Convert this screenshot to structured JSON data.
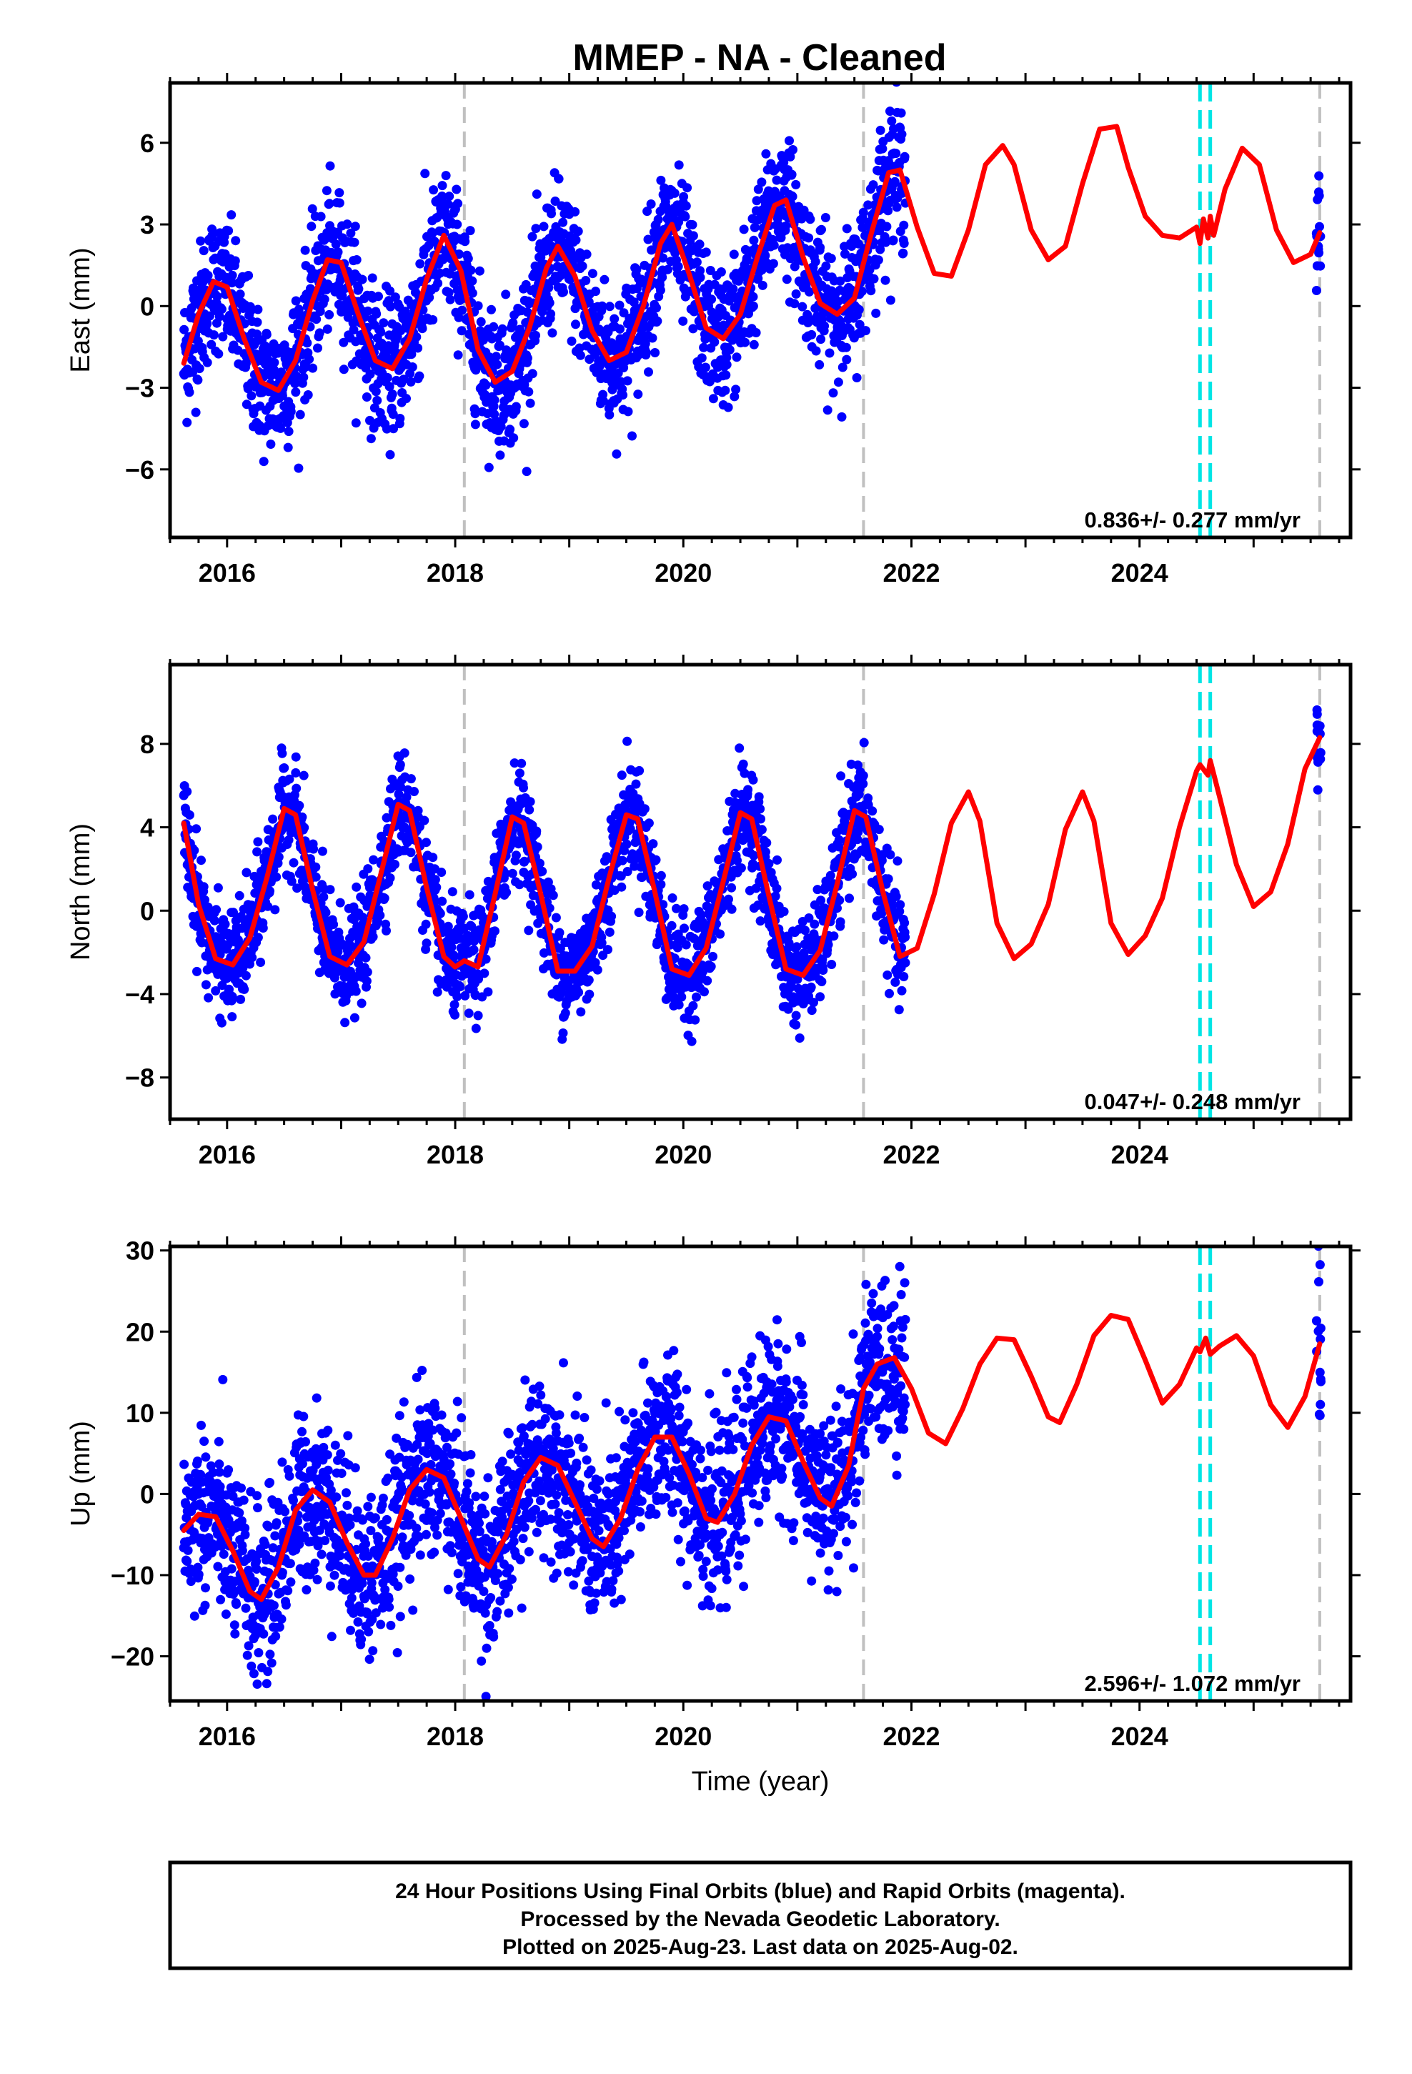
{
  "title": "MMEP  - NA - Cleaned",
  "colors": {
    "points": "#0000ff",
    "model": "#ff0000",
    "equipment_change": "#c0c0c0",
    "event": "#00e5e5",
    "frame": "#000000"
  },
  "chart_data": [
    {
      "type": "scatter",
      "ylabel": "East (mm)",
      "xlabel": "",
      "xlim": [
        2015.5,
        2025.85
      ],
      "ylim": [
        -8.5,
        8.2
      ],
      "xticks": [
        2016,
        2018,
        2020,
        2022,
        2024
      ],
      "yticks": [
        -6,
        -3,
        0,
        3,
        6
      ],
      "ytick_labels": [
        "−6",
        "−3",
        "0",
        "3",
        "6"
      ],
      "rate_text": "0.836+/- 0.277 mm/yr",
      "grey_lines": [
        2018.08,
        2021.58,
        2025.58
      ],
      "cyan_lines": [
        2024.53,
        2024.62
      ],
      "series_model": {
        "x": [
          2015.62,
          2015.75,
          2015.88,
          2016.0,
          2016.15,
          2016.3,
          2016.45,
          2016.6,
          2016.75,
          2016.88,
          2017.0,
          2017.15,
          2017.3,
          2017.45,
          2017.6,
          2017.75,
          2017.9,
          2018.05,
          2018.2,
          2018.35,
          2018.5,
          2018.65,
          2018.8,
          2018.9,
          2019.05,
          2019.2,
          2019.35,
          2019.5,
          2019.65,
          2019.8,
          2019.9,
          2020.05,
          2020.2,
          2020.35,
          2020.5,
          2020.65,
          2020.8,
          2020.9,
          2021.05,
          2021.2,
          2021.35,
          2021.5,
          2021.65,
          2021.8,
          2021.9,
          2022.05,
          2022.2,
          2022.35,
          2022.5,
          2022.65,
          2022.8,
          2022.9,
          2023.05,
          2023.2,
          2023.35,
          2023.5,
          2023.65,
          2023.8,
          2023.9,
          2024.05,
          2024.2,
          2024.35,
          2024.5,
          2024.53,
          2024.56,
          2024.6,
          2024.62,
          2024.65,
          2024.75,
          2024.9,
          2025.05,
          2025.2,
          2025.35,
          2025.5,
          2025.58
        ],
        "y": [
          -2.1,
          -0.3,
          0.9,
          0.7,
          -1.2,
          -2.8,
          -3.1,
          -2.0,
          0.2,
          1.7,
          1.6,
          -0.3,
          -2.0,
          -2.3,
          -1.2,
          1.0,
          2.6,
          1.3,
          -1.6,
          -2.8,
          -2.4,
          -0.8,
          1.4,
          2.2,
          1.1,
          -0.9,
          -2.0,
          -1.7,
          0.0,
          2.3,
          3.0,
          1.2,
          -0.8,
          -1.2,
          -0.3,
          1.8,
          3.7,
          3.9,
          1.8,
          0.1,
          -0.3,
          0.3,
          2.7,
          4.9,
          5.0,
          2.9,
          1.2,
          1.1,
          2.8,
          5.2,
          5.9,
          5.2,
          2.8,
          1.7,
          2.2,
          4.5,
          6.5,
          6.6,
          5.1,
          3.3,
          2.6,
          2.5,
          2.9,
          2.3,
          3.2,
          2.5,
          3.3,
          2.6,
          4.3,
          5.8,
          5.2,
          2.8,
          1.6,
          1.9,
          2.7
        ]
      }
    },
    {
      "type": "scatter",
      "ylabel": "North (mm)",
      "xlabel": "",
      "xlim": [
        2015.5,
        2025.85
      ],
      "ylim": [
        -10.0,
        11.8
      ],
      "xticks": [
        2016,
        2018,
        2020,
        2022,
        2024
      ],
      "yticks": [
        -8,
        -4,
        0,
        4,
        8
      ],
      "ytick_labels": [
        "−8",
        "−4",
        "0",
        "4",
        "8"
      ],
      "rate_text": "0.047+/- 0.248 mm/yr",
      "grey_lines": [
        2018.08,
        2021.58,
        2025.58
      ],
      "cyan_lines": [
        2024.53,
        2024.62
      ],
      "series_model": {
        "x": [
          2015.62,
          2015.75,
          2015.9,
          2016.05,
          2016.2,
          2016.35,
          2016.5,
          2016.6,
          2016.75,
          2016.9,
          2017.05,
          2017.2,
          2017.35,
          2017.5,
          2017.6,
          2017.75,
          2017.9,
          2018.0,
          2018.08,
          2018.2,
          2018.35,
          2018.5,
          2018.6,
          2018.75,
          2018.9,
          2019.05,
          2019.2,
          2019.35,
          2019.5,
          2019.6,
          2019.75,
          2019.9,
          2020.05,
          2020.2,
          2020.35,
          2020.5,
          2020.6,
          2020.75,
          2020.9,
          2021.05,
          2021.2,
          2021.35,
          2021.5,
          2021.6,
          2021.75,
          2021.9,
          2022.05,
          2022.2,
          2022.35,
          2022.5,
          2022.6,
          2022.75,
          2022.9,
          2023.05,
          2023.2,
          2023.35,
          2023.5,
          2023.6,
          2023.75,
          2023.9,
          2024.05,
          2024.2,
          2024.35,
          2024.5,
          2024.53,
          2024.6,
          2024.62,
          2024.7,
          2024.85,
          2025.0,
          2025.15,
          2025.3,
          2025.45,
          2025.58
        ],
        "y": [
          4.2,
          0.3,
          -2.3,
          -2.6,
          -1.3,
          1.6,
          4.9,
          4.6,
          1.0,
          -2.2,
          -2.6,
          -1.5,
          1.8,
          5.1,
          4.8,
          1.1,
          -2.2,
          -2.7,
          -2.4,
          -2.7,
          0.8,
          4.5,
          4.2,
          0.8,
          -2.9,
          -2.9,
          -1.7,
          1.6,
          4.6,
          4.4,
          0.9,
          -2.8,
          -3.1,
          -1.8,
          1.4,
          4.7,
          4.4,
          0.7,
          -2.8,
          -3.1,
          -1.9,
          1.3,
          4.8,
          4.5,
          0.9,
          -2.2,
          -1.8,
          0.8,
          4.2,
          5.7,
          4.3,
          -0.6,
          -2.3,
          -1.6,
          0.3,
          3.9,
          5.7,
          4.3,
          -0.6,
          -2.1,
          -1.2,
          0.6,
          4.0,
          6.7,
          7.0,
          6.5,
          7.2,
          5.5,
          2.2,
          0.2,
          0.9,
          3.2,
          6.8,
          8.3
        ]
      }
    },
    {
      "type": "scatter",
      "ylabel": "Up (mm)",
      "xlabel": "Time (year)",
      "xlim": [
        2015.5,
        2025.85
      ],
      "ylim": [
        -25.5,
        30.5
      ],
      "xticks": [
        2016,
        2018,
        2020,
        2022,
        2024
      ],
      "yticks": [
        -20,
        -10,
        0,
        10,
        20,
        30
      ],
      "ytick_labels": [
        "−20",
        "−10",
        "0",
        "10",
        "20",
        "30"
      ],
      "rate_text": "2.596+/- 1.072 mm/yr",
      "grey_lines": [
        2018.08,
        2021.58,
        2025.58
      ],
      "cyan_lines": [
        2024.53,
        2024.62
      ],
      "series_model": {
        "x": [
          2015.62,
          2015.75,
          2015.9,
          2016.05,
          2016.2,
          2016.3,
          2016.45,
          2016.6,
          2016.75,
          2016.9,
          2017.05,
          2017.2,
          2017.3,
          2017.45,
          2017.6,
          2017.75,
          2017.9,
          2018.05,
          2018.2,
          2018.3,
          2018.45,
          2018.6,
          2018.75,
          2018.9,
          2019.05,
          2019.2,
          2019.3,
          2019.45,
          2019.6,
          2019.75,
          2019.9,
          2020.05,
          2020.2,
          2020.3,
          2020.45,
          2020.6,
          2020.75,
          2020.9,
          2021.05,
          2021.2,
          2021.3,
          2021.45,
          2021.58,
          2021.7,
          2021.85,
          2022.0,
          2022.15,
          2022.3,
          2022.45,
          2022.6,
          2022.75,
          2022.9,
          2023.05,
          2023.2,
          2023.3,
          2023.45,
          2023.6,
          2023.75,
          2023.9,
          2024.05,
          2024.2,
          2024.35,
          2024.5,
          2024.53,
          2024.58,
          2024.62,
          2024.7,
          2024.85,
          2025.0,
          2025.15,
          2025.3,
          2025.45,
          2025.58
        ],
        "y": [
          -4.5,
          -2.5,
          -2.8,
          -7.0,
          -12.0,
          -13.0,
          -9.0,
          -2.0,
          0.5,
          -1.0,
          -6.0,
          -10.0,
          -10.0,
          -5.5,
          0.5,
          3.0,
          2.0,
          -3.0,
          -8.0,
          -9.0,
          -5.0,
          1.5,
          4.5,
          3.5,
          -1.0,
          -5.5,
          -6.5,
          -3.0,
          3.0,
          7.0,
          7.0,
          2.5,
          -3.0,
          -3.5,
          0.0,
          6.0,
          9.5,
          9.0,
          4.0,
          -0.5,
          -1.5,
          3.5,
          13.0,
          16.0,
          16.8,
          13.0,
          7.5,
          6.2,
          10.5,
          16.0,
          19.2,
          19.0,
          14.5,
          9.5,
          8.8,
          13.5,
          19.5,
          22.0,
          21.5,
          16.5,
          11.2,
          13.5,
          18.0,
          17.5,
          19.2,
          17.2,
          18.2,
          19.5,
          17.0,
          11.0,
          8.2,
          12.0,
          18.5
        ]
      }
    }
  ],
  "footer": {
    "line1": "24 Hour Positions Using Final Orbits (blue) and Rapid Orbits (magenta).",
    "line2": "Processed by the Nevada Geodetic Laboratory.",
    "line3": "Plotted on 2025-Aug-23. Last data on 2025-Aug-02."
  }
}
